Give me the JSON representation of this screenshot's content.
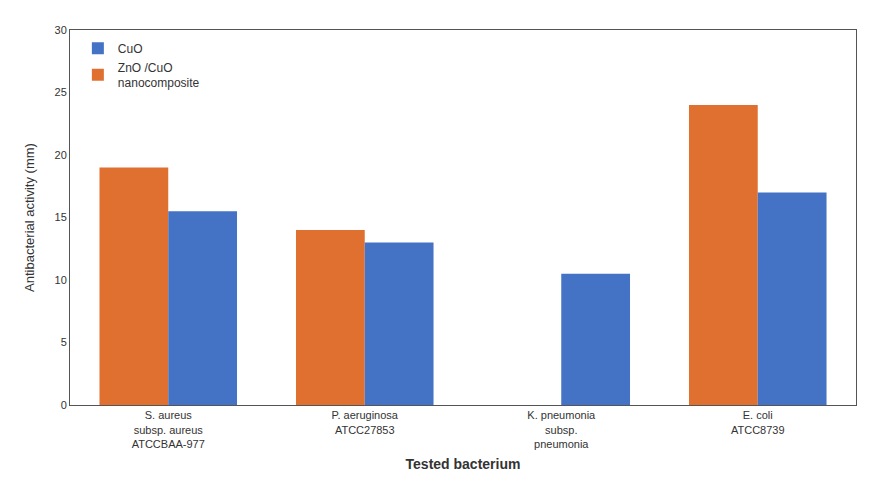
{
  "chart_data": {
    "type": "bar",
    "categories": [
      "S. aureus\nsubsp. aureus\nATCCBAA-977",
      "P. aeruginosa\nATCC27853",
      "K. pneumonia\nsubsp.\npneumonia",
      "E. coli\nATCC8739"
    ],
    "series": [
      {
        "name": "ZnO /CuO\nnanocomposite",
        "color": "#E07030",
        "values": [
          19.0,
          14.0,
          0,
          24.0
        ]
      },
      {
        "name": "CuO",
        "color": "#4472C4",
        "values": [
          15.5,
          13.0,
          10.5,
          17.0
        ]
      }
    ],
    "xlabel": "Tested bacterium",
    "ylabel": "Antibacterial activity (mm)",
    "ylim": [
      0,
      30
    ],
    "yticks": [
      0,
      5,
      10,
      15,
      20,
      25,
      30
    ],
    "grid": false,
    "legend": "upper left"
  }
}
